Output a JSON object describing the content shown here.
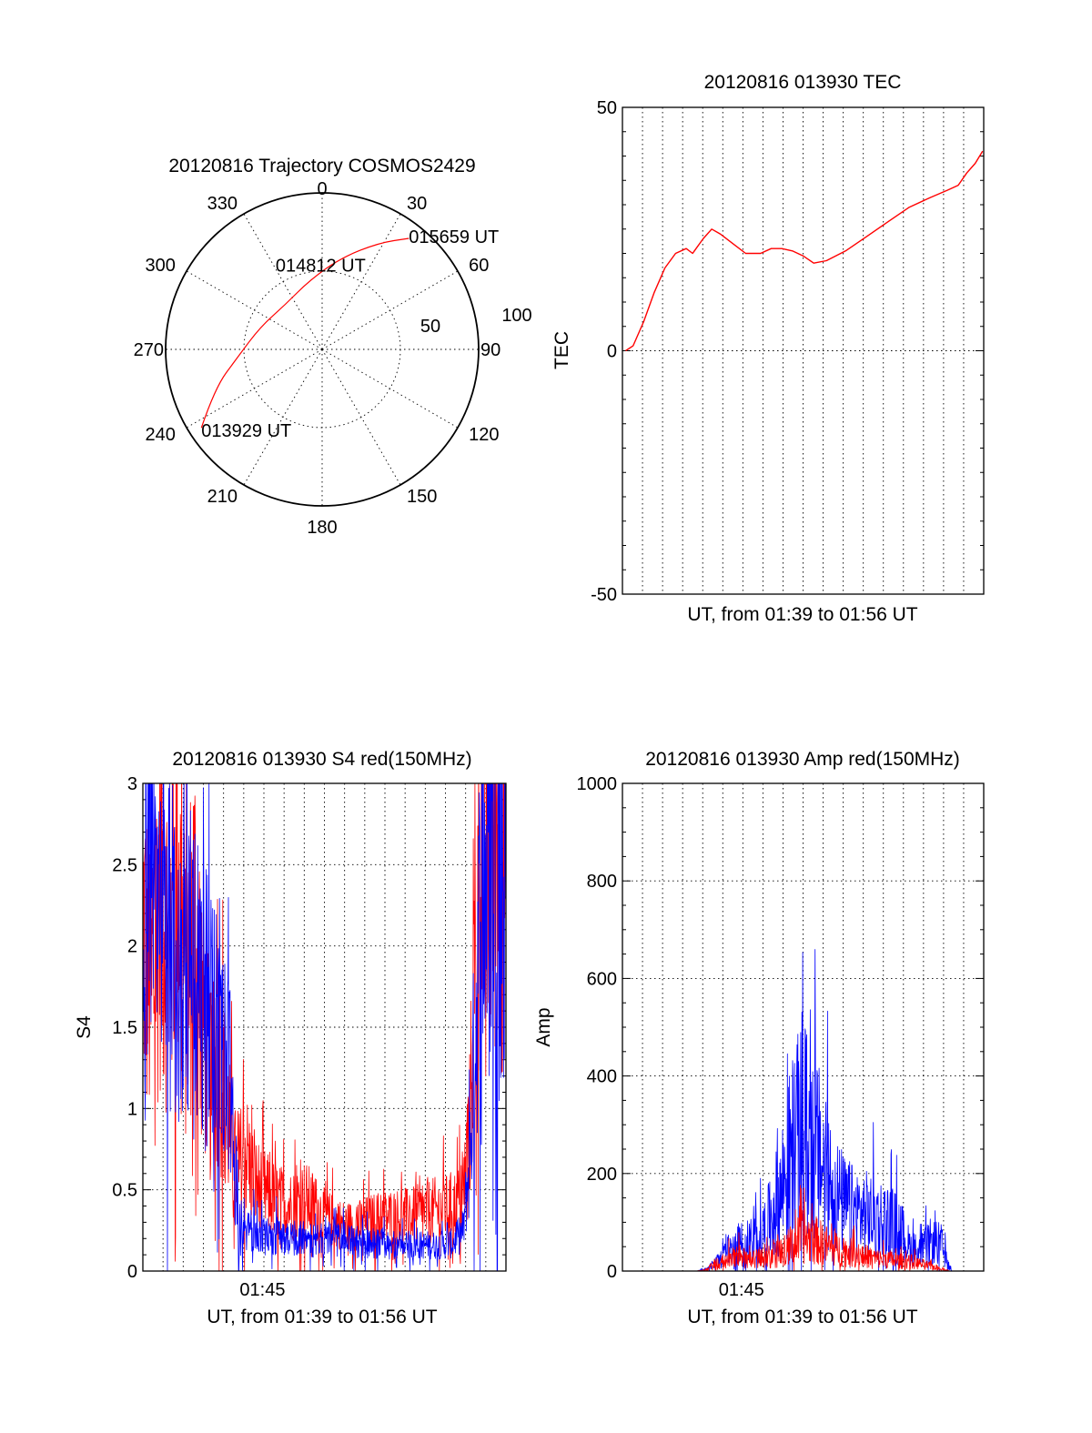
{
  "colors": {
    "red": "#ff0000",
    "blue": "#0000ff",
    "axis": "#000000"
  },
  "chart_data": [
    {
      "id": "trajectory",
      "type": "polar",
      "title": "20120816 Trajectory COSMOS2429",
      "azimuth_labels": [
        "0",
        "30",
        "60",
        "90",
        "120",
        "150",
        "180",
        "210",
        "240",
        "270",
        "300",
        "330"
      ],
      "radial_labels": [
        "50",
        "100"
      ],
      "radial_max": 100,
      "grid": true,
      "series": [
        {
          "color": "red",
          "points": [
            {
              "az": 237,
              "r": 92
            },
            {
              "az": 250,
              "r": 73
            },
            {
              "az": 265,
              "r": 54
            },
            {
              "az": 290,
              "r": 42
            },
            {
              "az": 320,
              "r": 37
            },
            {
              "az": 350,
              "r": 45
            },
            {
              "az": 12,
              "r": 60
            },
            {
              "az": 28,
              "r": 77
            },
            {
              "az": 38,
              "r": 90
            }
          ]
        }
      ],
      "annotations": [
        {
          "text": "015659 UT",
          "az": 38,
          "r": 90
        },
        {
          "text": "014812 UT",
          "az": 348,
          "r": 27
        },
        {
          "text": "013929 UT",
          "az": 237,
          "r": 92
        }
      ]
    },
    {
      "id": "tec",
      "type": "line",
      "title": "20120816 013930 TEC",
      "ylabel": "TEC",
      "xlabel": "UT, from 01:39 to 01:56 UT",
      "ylim": [
        -50,
        50
      ],
      "yticks": [
        "-50",
        "0",
        "50"
      ],
      "xlim": [
        0,
        17
      ],
      "grid": true,
      "series": [
        {
          "color": "red",
          "points": [
            [
              0.15,
              0
            ],
            [
              0.5,
              1
            ],
            [
              1.0,
              6
            ],
            [
              1.5,
              12
            ],
            [
              2.0,
              17
            ],
            [
              2.5,
              20
            ],
            [
              3.0,
              21
            ],
            [
              3.3,
              20
            ],
            [
              3.8,
              23
            ],
            [
              4.2,
              25
            ],
            [
              4.6,
              24
            ],
            [
              5.2,
              22
            ],
            [
              5.8,
              20
            ],
            [
              6.5,
              20
            ],
            [
              7.0,
              21
            ],
            [
              7.5,
              21
            ],
            [
              8.0,
              20.5
            ],
            [
              8.5,
              19.5
            ],
            [
              9.0,
              18
            ],
            [
              9.6,
              18.5
            ],
            [
              10.5,
              20.5
            ],
            [
              11.5,
              23.5
            ],
            [
              12.5,
              26.5
            ],
            [
              13.5,
              29.5
            ],
            [
              14.5,
              31.5
            ],
            [
              15.3,
              33
            ],
            [
              15.8,
              34
            ],
            [
              16.2,
              36.5
            ],
            [
              16.6,
              38.5
            ],
            [
              16.95,
              41
            ]
          ]
        }
      ]
    },
    {
      "id": "s4",
      "type": "line",
      "title": "20120816 013930 S4 red(150MHz)",
      "ylabel": "S4",
      "xlabel": "UT, from 01:39 to 01:56 UT",
      "ylim": [
        0,
        3
      ],
      "yticks": [
        "0",
        "0.5",
        "1",
        "1.5",
        "2",
        "2.5",
        "3"
      ],
      "xlim": [
        0,
        17
      ],
      "xticks": [
        {
          "x": 5.6,
          "label": "01:45"
        }
      ],
      "grid": true,
      "series": [
        {
          "color": "red",
          "points": [
            [
              0.05,
              2.1
            ],
            [
              0.4,
              1.6
            ],
            [
              0.8,
              2.4
            ],
            [
              1.2,
              2.0
            ],
            [
              1.6,
              2.6
            ],
            [
              2.0,
              1.7
            ],
            [
              2.4,
              2.2
            ],
            [
              2.8,
              1.6
            ],
            [
              3.2,
              1.1
            ],
            [
              3.6,
              1.3
            ],
            [
              4.0,
              0.9
            ],
            [
              4.4,
              0.6
            ],
            [
              4.8,
              0.75
            ],
            [
              5.2,
              0.55
            ],
            [
              5.6,
              0.5
            ],
            [
              6.0,
              0.45
            ],
            [
              6.5,
              0.42
            ],
            [
              7.0,
              0.4
            ],
            [
              7.5,
              0.45
            ],
            [
              8.0,
              0.4
            ],
            [
              8.5,
              0.33
            ],
            [
              9.0,
              0.3
            ],
            [
              9.5,
              0.28
            ],
            [
              10.0,
              0.28
            ],
            [
              10.5,
              0.3
            ],
            [
              11.0,
              0.32
            ],
            [
              11.5,
              0.33
            ],
            [
              12.0,
              0.33
            ],
            [
              12.5,
              0.33
            ],
            [
              13.0,
              0.35
            ],
            [
              13.5,
              0.37
            ],
            [
              14.0,
              0.38
            ],
            [
              14.5,
              0.4
            ],
            [
              15.0,
              0.45
            ],
            [
              15.3,
              0.9
            ],
            [
              15.5,
              1.6
            ],
            [
              15.8,
              2.6
            ],
            [
              16.2,
              2.6
            ],
            [
              16.6,
              2.8
            ],
            [
              16.95,
              2.5
            ]
          ]
        },
        {
          "color": "blue",
          "points": [
            [
              0.05,
              2.0
            ],
            [
              0.4,
              2.3
            ],
            [
              0.8,
              1.9
            ],
            [
              1.2,
              2.2
            ],
            [
              1.6,
              1.85
            ],
            [
              2.0,
              2.0
            ],
            [
              2.4,
              1.75
            ],
            [
              2.8,
              1.65
            ],
            [
              3.2,
              1.55
            ],
            [
              3.6,
              1.5
            ],
            [
              4.0,
              1.3
            ],
            [
              4.3,
              0.6
            ],
            [
              4.6,
              0.32
            ],
            [
              5.0,
              0.25
            ],
            [
              5.5,
              0.22
            ],
            [
              6.0,
              0.21
            ],
            [
              6.5,
              0.22
            ],
            [
              7.0,
              0.2
            ],
            [
              7.5,
              0.2
            ],
            [
              8.0,
              0.19
            ],
            [
              8.5,
              0.2
            ],
            [
              9.0,
              0.2
            ],
            [
              9.5,
              0.19
            ],
            [
              10.0,
              0.18
            ],
            [
              10.5,
              0.17
            ],
            [
              11.0,
              0.17
            ],
            [
              11.5,
              0.16
            ],
            [
              12.0,
              0.16
            ],
            [
              12.5,
              0.16
            ],
            [
              13.0,
              0.16
            ],
            [
              13.5,
              0.16
            ],
            [
              14.0,
              0.16
            ],
            [
              14.5,
              0.17
            ],
            [
              15.0,
              0.25
            ],
            [
              15.3,
              0.7
            ],
            [
              15.5,
              1.3
            ],
            [
              15.8,
              2.2
            ],
            [
              16.2,
              2.6
            ],
            [
              16.6,
              2.7
            ],
            [
              16.95,
              2.6
            ]
          ]
        }
      ]
    },
    {
      "id": "amp",
      "type": "line",
      "title": "20120816 013930 Amp red(150MHz)",
      "ylabel": "Amp",
      "xlabel": "UT, from 01:39 to 01:56 UT",
      "ylim": [
        0,
        1000
      ],
      "yticks": [
        "0",
        "200",
        "400",
        "600",
        "800",
        "1000"
      ],
      "xlim": [
        0,
        17
      ],
      "xticks": [
        {
          "x": 5.6,
          "label": "01:45"
        }
      ],
      "grid": true,
      "series": [
        {
          "color": "blue",
          "points": [
            [
              0.0,
              0
            ],
            [
              3.5,
              0
            ],
            [
              4.0,
              5
            ],
            [
              4.5,
              20
            ],
            [
              5.0,
              45
            ],
            [
              5.5,
              55
            ],
            [
              6.0,
              60
            ],
            [
              6.5,
              70
            ],
            [
              7.0,
              110
            ],
            [
              7.5,
              170
            ],
            [
              8.0,
              250
            ],
            [
              8.5,
              290
            ],
            [
              9.0,
              260
            ],
            [
              9.5,
              210
            ],
            [
              10.0,
              160
            ],
            [
              10.5,
              130
            ],
            [
              11.0,
              120
            ],
            [
              11.5,
              115
            ],
            [
              12.0,
              110
            ],
            [
              12.5,
              100
            ],
            [
              13.0,
              90
            ],
            [
              13.5,
              50
            ],
            [
              14.0,
              40
            ],
            [
              14.5,
              60
            ],
            [
              15.0,
              55
            ],
            [
              15.3,
              15
            ],
            [
              15.5,
              0
            ],
            [
              17.0,
              0
            ]
          ]
        },
        {
          "color": "red",
          "points": [
            [
              0.0,
              0
            ],
            [
              3.5,
              0
            ],
            [
              4.0,
              5
            ],
            [
              4.5,
              15
            ],
            [
              5.0,
              25
            ],
            [
              5.5,
              30
            ],
            [
              6.0,
              25
            ],
            [
              6.5,
              25
            ],
            [
              7.0,
              30
            ],
            [
              7.5,
              40
            ],
            [
              8.0,
              55
            ],
            [
              8.5,
              70
            ],
            [
              9.0,
              65
            ],
            [
              9.5,
              55
            ],
            [
              10.0,
              45
            ],
            [
              10.5,
              40
            ],
            [
              11.0,
              35
            ],
            [
              11.5,
              30
            ],
            [
              12.0,
              25
            ],
            [
              12.5,
              25
            ],
            [
              13.0,
              20
            ],
            [
              13.5,
              20
            ],
            [
              14.0,
              15
            ],
            [
              14.5,
              10
            ],
            [
              15.0,
              5
            ],
            [
              15.4,
              0
            ],
            [
              17.0,
              0
            ]
          ]
        }
      ]
    }
  ]
}
